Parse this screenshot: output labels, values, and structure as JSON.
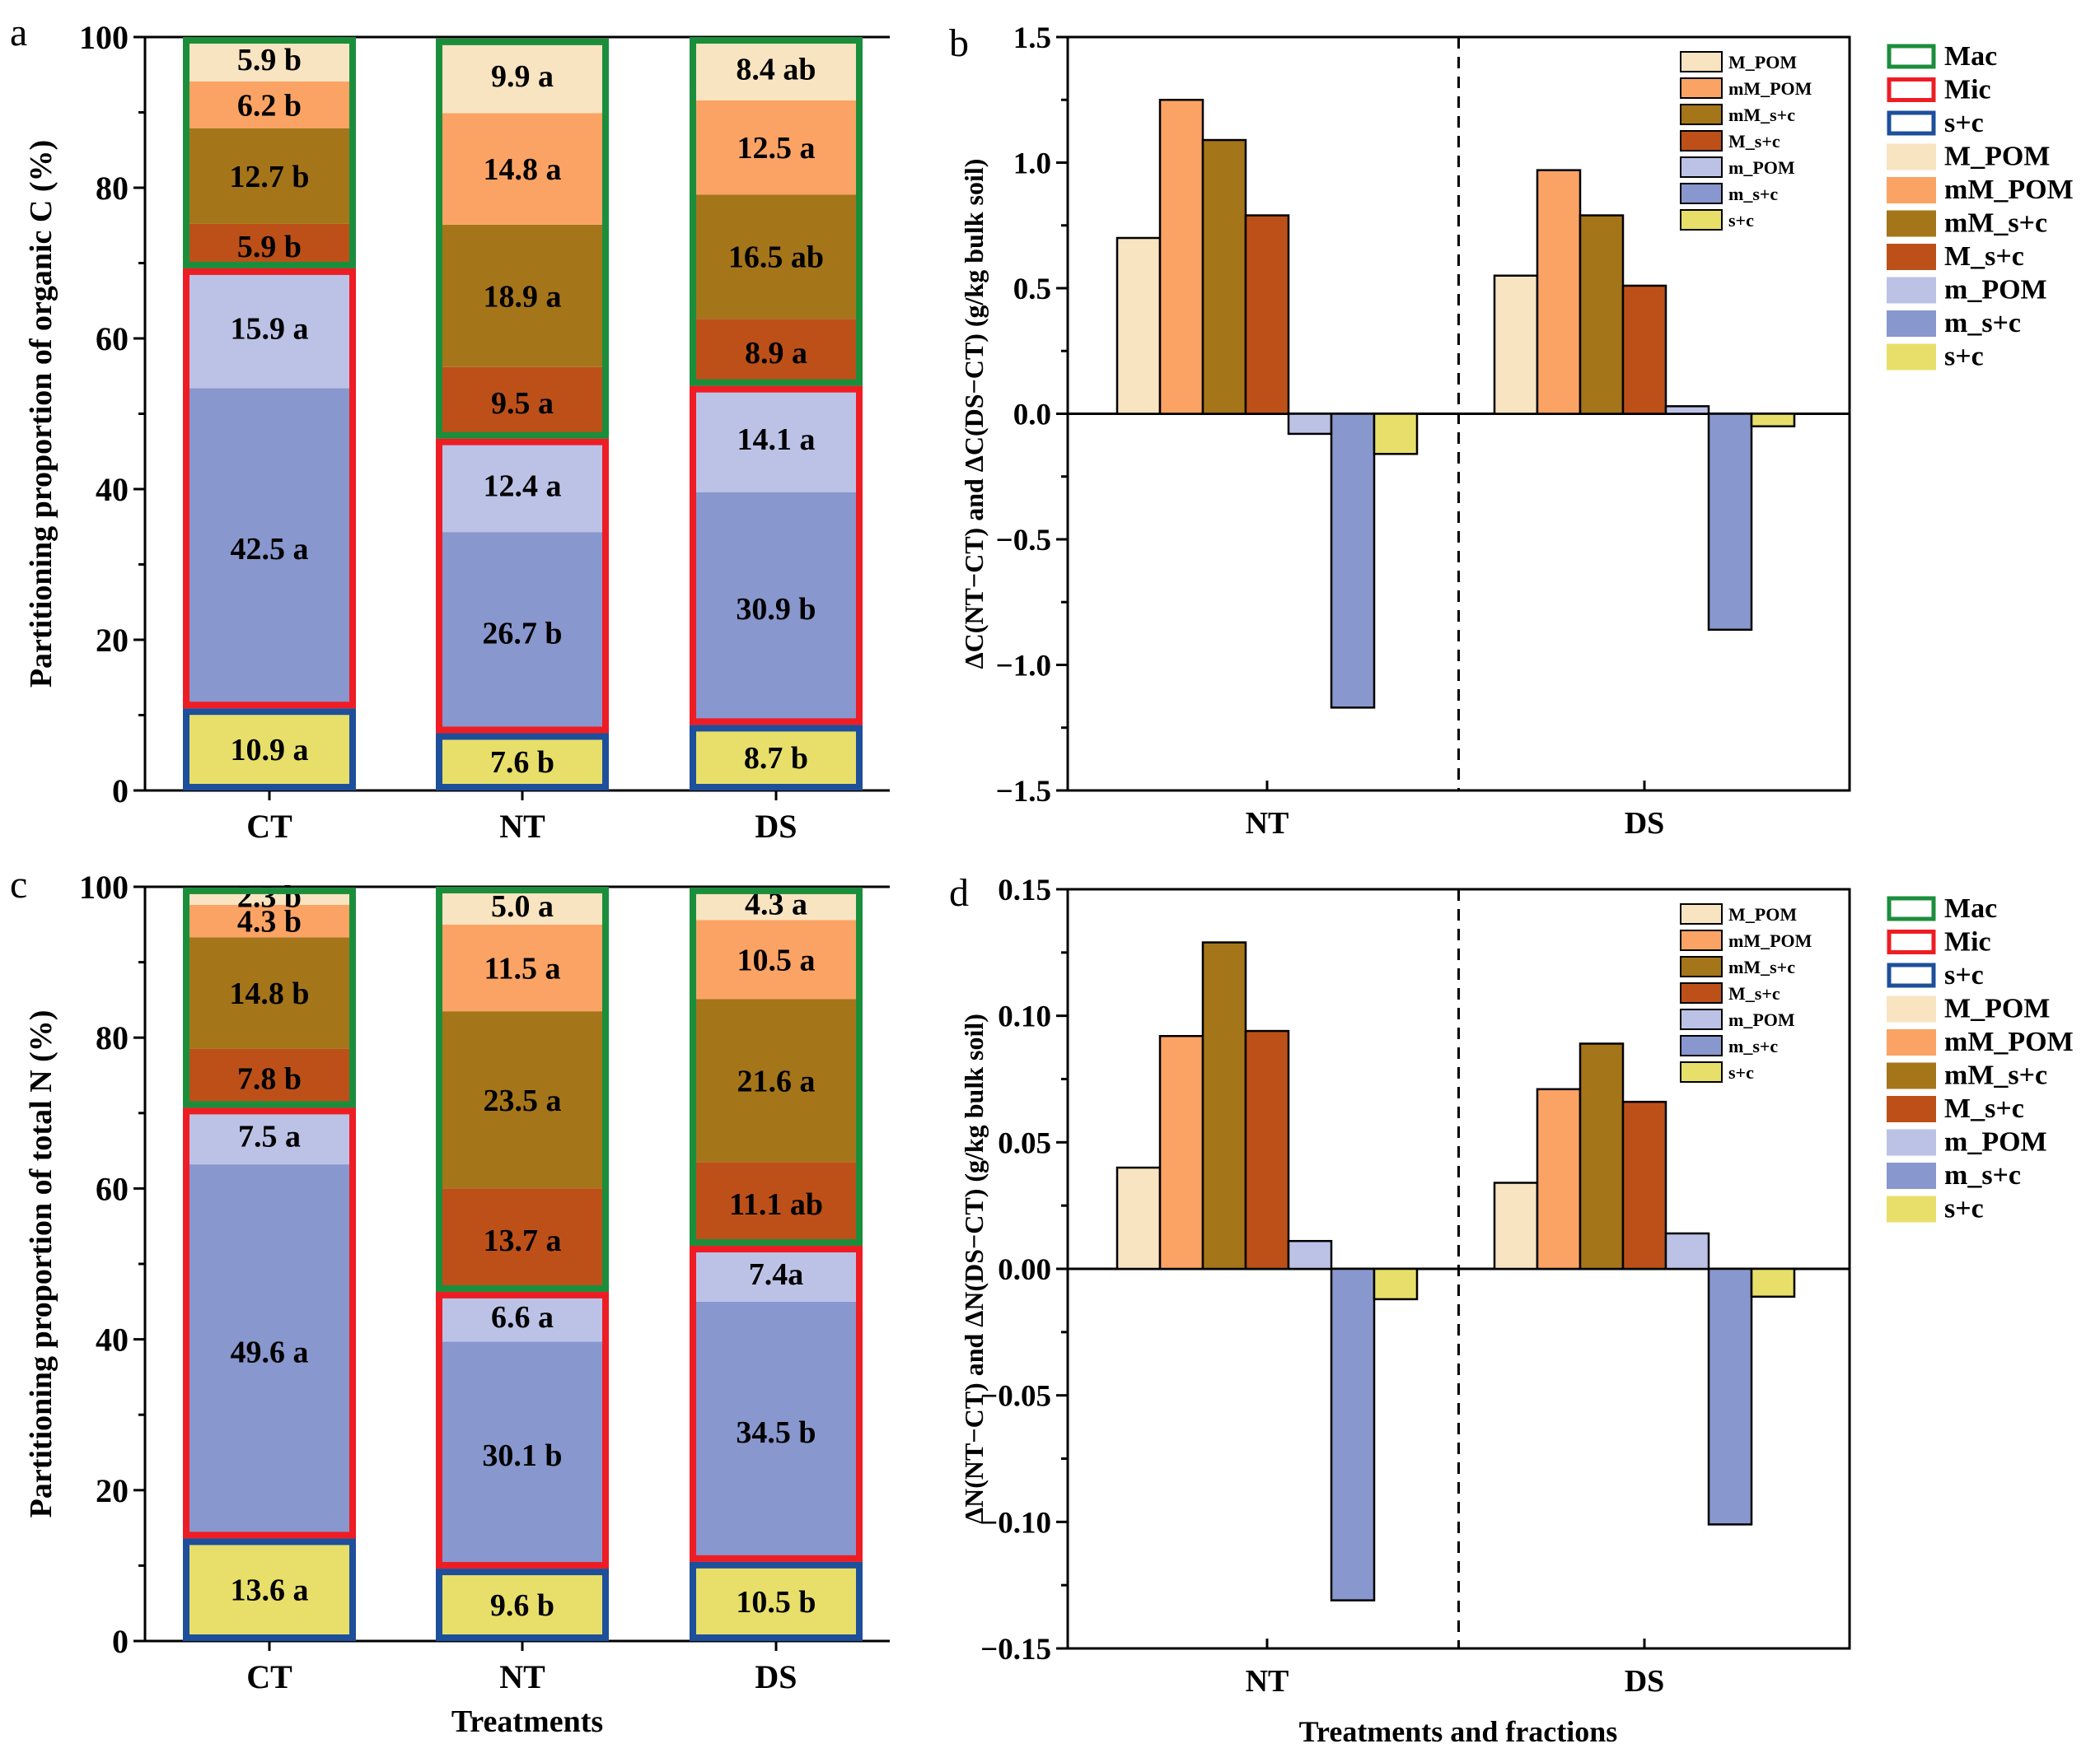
{
  "xlabel_bottom_left": "Treatments",
  "xlabel_bottom_right": "Treatments and fractions",
  "colors": {
    "M_POM": "#F8E4C0",
    "mM_POM": "#FBA364",
    "mM_s+c": "#A5751A",
    "M_s+c": "#BD5019",
    "m_POM": "#BCC2E6",
    "m_s+c": "#8897CD",
    "s+c": "#E7DF6A",
    "Mac": "#1B8E3C",
    "Mic": "#EE1D24",
    "sc_box": "#1D4F9B"
  },
  "chart_data": [
    {
      "type": "bar",
      "stacked": true,
      "panel": "a",
      "ylabel": "Partitioning proportion of organic C (%)",
      "ylim": [
        0,
        100
      ],
      "yticks": [
        "0",
        "20",
        "40",
        "60",
        "80",
        "100"
      ],
      "categories": [
        "CT",
        "NT",
        "DS"
      ],
      "series": [
        {
          "name": "s+c",
          "values": [
            10.9,
            7.6,
            8.7
          ],
          "labels": [
            "10.9 a",
            "7.6 b",
            "8.7 b"
          ]
        },
        {
          "name": "m_s+c",
          "values": [
            42.5,
            26.7,
            30.9
          ],
          "labels": [
            "42.5 a",
            "26.7 b",
            "30.9 b"
          ]
        },
        {
          "name": "m_POM",
          "values": [
            15.9,
            12.4,
            14.1
          ],
          "labels": [
            "15.9 a",
            "12.4 a",
            "14.1 a"
          ]
        },
        {
          "name": "M_s+c",
          "values": [
            5.9,
            9.5,
            8.9
          ],
          "labels": [
            "5.9 b",
            "9.5 a",
            "8.9 a"
          ]
        },
        {
          "name": "mM_s+c",
          "values": [
            12.7,
            18.9,
            16.5
          ],
          "labels": [
            "12.7 b",
            "18.9 a",
            "16.5 ab"
          ]
        },
        {
          "name": "mM_POM",
          "values": [
            6.2,
            14.8,
            12.5
          ],
          "labels": [
            "6.2 b",
            "14.8 a",
            "12.5 a"
          ]
        },
        {
          "name": "M_POM",
          "values": [
            5.9,
            9.9,
            8.4
          ],
          "labels": [
            "5.9 b",
            "9.9 a",
            "8.4 ab"
          ]
        }
      ]
    },
    {
      "type": "bar",
      "panel": "b",
      "ylabel": "ΔC(NT−CT) and ΔC(DS−CT)  (g/kg bulk soil)",
      "ylim": [
        -1.5,
        1.5
      ],
      "yticks": [
        "−1.5",
        "−1.0",
        "−0.5",
        "0.0",
        "0.5",
        "1.0",
        "1.5"
      ],
      "categories": [
        "NT",
        "DS"
      ],
      "series": [
        {
          "name": "M_POM",
          "values": [
            0.7,
            0.55
          ]
        },
        {
          "name": "mM_POM",
          "values": [
            1.25,
            0.97
          ]
        },
        {
          "name": "mM_s+c",
          "values": [
            1.09,
            0.79
          ]
        },
        {
          "name": "M_s+c",
          "values": [
            0.79,
            0.51
          ]
        },
        {
          "name": "m_POM",
          "values": [
            -0.08,
            0.03
          ]
        },
        {
          "name": "m_s+c",
          "values": [
            -1.17,
            -0.86
          ]
        },
        {
          "name": "s+c",
          "values": [
            -0.16,
            -0.05
          ]
        }
      ],
      "legend_inner": [
        "M_POM",
        "mM_POM",
        "mM_s+c",
        "M_s+c",
        "m_POM",
        "m_s+c",
        "s+c"
      ],
      "legend_outer": [
        "Mac",
        "Mic",
        "s+c",
        "M_POM",
        "mM_POM",
        "mM_s+c",
        "M_s+c",
        "m_POM",
        "m_s+c",
        "s+c"
      ]
    },
    {
      "type": "bar",
      "stacked": true,
      "panel": "c",
      "ylabel": "Partitioning proportion of total N (%)",
      "ylim": [
        0,
        100
      ],
      "yticks": [
        "0",
        "20",
        "40",
        "60",
        "80",
        "100"
      ],
      "categories": [
        "CT",
        "NT",
        "DS"
      ],
      "series": [
        {
          "name": "s+c",
          "values": [
            13.6,
            9.6,
            10.5
          ],
          "labels": [
            "13.6 a",
            "9.6 b",
            "10.5 b"
          ]
        },
        {
          "name": "m_s+c",
          "values": [
            49.6,
            30.1,
            34.5
          ],
          "labels": [
            "49.6 a",
            "30.1 b",
            "34.5 b"
          ]
        },
        {
          "name": "m_POM",
          "values": [
            7.5,
            6.6,
            7.4
          ],
          "labels": [
            "7.5 a",
            "6.6 a",
            "7.4a"
          ]
        },
        {
          "name": "M_s+c",
          "values": [
            7.8,
            13.7,
            11.1
          ],
          "labels": [
            "7.8 b",
            "13.7 a",
            "11.1 ab"
          ]
        },
        {
          "name": "mM_s+c",
          "values": [
            14.8,
            23.5,
            21.6
          ],
          "labels": [
            "14.8 b",
            "23.5 a",
            "21.6 a"
          ]
        },
        {
          "name": "mM_POM",
          "values": [
            4.3,
            11.5,
            10.5
          ],
          "labels": [
            "4.3 b",
            "11.5 a",
            "10.5 a"
          ]
        },
        {
          "name": "M_POM",
          "values": [
            2.3,
            5.0,
            4.3
          ],
          "labels": [
            "2.3 b",
            "5.0 a",
            "4.3 a"
          ]
        }
      ]
    },
    {
      "type": "bar",
      "panel": "d",
      "ylabel": "ΔN(NT−CT) and ΔN(DS−CT)  (g/kg bulk soil)",
      "ylim": [
        -0.15,
        0.15
      ],
      "yticks": [
        "−0.15",
        "−0.10",
        "−0.05",
        "0.00",
        "0.05",
        "0.10",
        "0.15"
      ],
      "categories": [
        "NT",
        "DS"
      ],
      "series": [
        {
          "name": "M_POM",
          "values": [
            0.04,
            0.034
          ]
        },
        {
          "name": "mM_POM",
          "values": [
            0.092,
            0.071
          ]
        },
        {
          "name": "mM_s+c",
          "values": [
            0.129,
            0.089
          ]
        },
        {
          "name": "M_s+c",
          "values": [
            0.094,
            0.066
          ]
        },
        {
          "name": "m_POM",
          "values": [
            0.011,
            0.014
          ]
        },
        {
          "name": "m_s+c",
          "values": [
            -0.131,
            -0.101
          ]
        },
        {
          "name": "s+c",
          "values": [
            -0.012,
            -0.011
          ]
        }
      ],
      "legend_inner": [
        "M_POM",
        "mM_POM",
        "mM_s+c",
        "M_s+c",
        "m_POM",
        "m_s+c",
        "s+c"
      ],
      "legend_outer": [
        "Mac",
        "Mic",
        "s+c",
        "M_POM",
        "mM_POM",
        "mM_s+c",
        "M_s+c",
        "m_POM",
        "m_s+c",
        "s+c"
      ]
    }
  ]
}
